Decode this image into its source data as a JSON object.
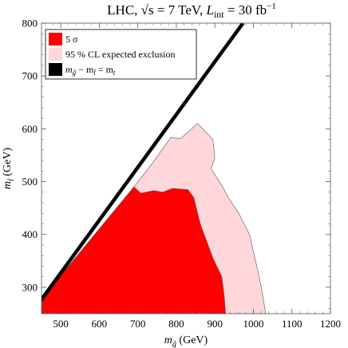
{
  "chart_data": {
    "type": "area",
    "title": {
      "prefix": "LHC, ",
      "energy_symbol": "√s",
      "energy_value": " = 7 TeV, ",
      "lumi_symbol": "L",
      "lumi_sub": "int",
      "lumi_value": " = 30 fb",
      "lumi_exp": "−1"
    },
    "xlabel": {
      "symbol": "m",
      "sub": "g̃",
      "unit": " (GeV)"
    },
    "ylabel": {
      "symbol": "m",
      "sub": "t̃",
      "unit": " (GeV)"
    },
    "xlim": [
      450,
      1200
    ],
    "ylim": [
      250,
      800
    ],
    "xticks": [
      500,
      600,
      700,
      800,
      900,
      1000,
      1100,
      1200
    ],
    "yticks": [
      300,
      400,
      500,
      600,
      700,
      800
    ],
    "legend_position": "top-left",
    "legend": [
      {
        "label": "5 σ",
        "color": "#ff0000"
      },
      {
        "label": "95 % CL expected exclusion",
        "color": "#ffd6da"
      },
      {
        "label_main": "m",
        "label_sub1": "g̃",
        "label_mid": " − m",
        "label_sub2": "t̃",
        "label_tail": " = m",
        "label_sub3": "t",
        "color": "#000000"
      }
    ],
    "series": [
      {
        "name": "95 % CL expected exclusion",
        "color": "#ffd6da",
        "points": [
          [
            450,
            250
          ],
          [
            450,
            278
          ],
          [
            690,
            490
          ],
          [
            740,
            537
          ],
          [
            785,
            583
          ],
          [
            812,
            582
          ],
          [
            855,
            610
          ],
          [
            895,
            580
          ],
          [
            900,
            545
          ],
          [
            890,
            525
          ],
          [
            920,
            490
          ],
          [
            935,
            470
          ],
          [
            962,
            440
          ],
          [
            990,
            400
          ],
          [
            1012,
            330
          ],
          [
            1023,
            290
          ],
          [
            1032,
            250
          ]
        ]
      },
      {
        "name": "5 σ",
        "color": "#ff0000",
        "points": [
          [
            450,
            250
          ],
          [
            450,
            278
          ],
          [
            690,
            490
          ],
          [
            708,
            478
          ],
          [
            742,
            483
          ],
          [
            765,
            480
          ],
          [
            790,
            487
          ],
          [
            830,
            485
          ],
          [
            845,
            470
          ],
          [
            862,
            420
          ],
          [
            880,
            385
          ],
          [
            895,
            355
          ],
          [
            918,
            320
          ],
          [
            924,
            285
          ],
          [
            928,
            250
          ]
        ]
      },
      {
        "name": "m_g̃ − m_t̃ = m_t",
        "color": "#000000",
        "points": [
          [
            448,
            275
          ],
          [
            973,
            800
          ]
        ]
      }
    ]
  }
}
